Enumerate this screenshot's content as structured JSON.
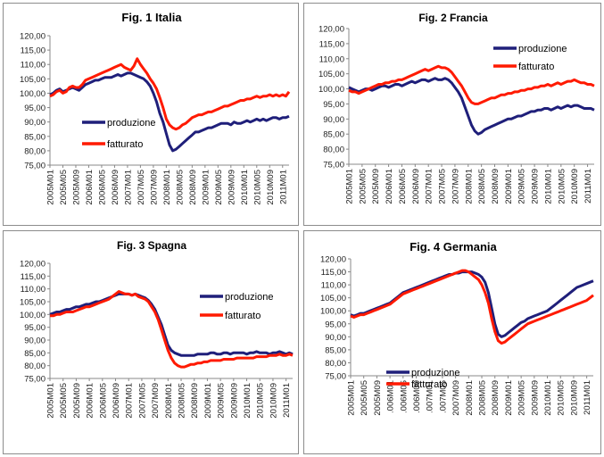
{
  "colors": {
    "produzione": "#1f1f7a",
    "fatturato": "#ff1a00"
  },
  "chart_data": [
    {
      "type": "line",
      "title": "Fig. 1 Italia",
      "ylim": [
        75,
        120
      ],
      "yticks": [
        "75,00",
        "80,00",
        "85,00",
        "90,00",
        "95,00",
        "100,00",
        "105,00",
        "110,00",
        "115,00",
        "120,00"
      ],
      "xticks": [
        "2005M01",
        "2005M05",
        "2005M09",
        "2006M01",
        "2006M05",
        "2006M09",
        "2007M01",
        "2007M05",
        "2007M09",
        "2008M01",
        "2008M05",
        "2008M09",
        "2009M01",
        "2009M05",
        "2009M09",
        "2010M01",
        "2010M05",
        "2010M09",
        "2011M01"
      ],
      "legend_position": "lower-left",
      "series": [
        {
          "name": "produzione",
          "values": [
            99.5,
            100,
            101,
            101.5,
            100.5,
            101,
            101.5,
            102,
            101.5,
            101,
            102,
            103,
            103.5,
            104,
            104.5,
            104.5,
            105,
            105.5,
            105.5,
            105.5,
            106,
            106.5,
            106,
            106.5,
            107,
            107,
            106.5,
            106,
            105.5,
            105,
            104,
            102.5,
            100,
            97,
            93,
            90,
            86,
            82,
            80,
            80.5,
            81.5,
            82.5,
            83.5,
            84.5,
            85.5,
            86.5,
            86.5,
            87,
            87.5,
            88,
            88,
            88.5,
            89,
            89.5,
            89.5,
            89.5,
            89,
            90,
            89.5,
            89.5,
            90,
            90.5,
            90,
            90.5,
            91,
            90.5,
            91,
            90.5,
            91,
            91.5,
            91.5,
            91,
            91.5,
            91.5,
            92
          ]
        },
        {
          "name": "fatturato",
          "values": [
            99,
            99.5,
            100.5,
            101,
            100,
            100.5,
            102,
            102.5,
            102,
            102,
            103,
            104.5,
            105,
            105.5,
            106,
            106.5,
            107,
            107.5,
            108,
            108.5,
            109,
            109.5,
            110,
            109,
            108.5,
            108,
            109.5,
            112,
            110,
            108.5,
            107,
            105,
            103.5,
            101.5,
            98.5,
            95,
            91,
            89,
            88,
            87.5,
            88,
            89,
            89.5,
            90.5,
            91.5,
            92,
            92.5,
            92.5,
            93,
            93.5,
            93.5,
            94,
            94.5,
            95,
            95.5,
            95.5,
            96,
            96.5,
            97,
            97.5,
            97.5,
            98,
            98,
            98.5,
            99,
            98.5,
            99,
            99,
            99.5,
            99,
            99.5,
            99,
            99.5,
            99,
            100.5
          ]
        }
      ]
    },
    {
      "type": "line",
      "title": "Fig. 2 Francia",
      "ylim": [
        75,
        120
      ],
      "yticks": [
        "75,00",
        "80,00",
        "85,00",
        "90,00",
        "95,00",
        "100,00",
        "105,00",
        "110,00",
        "115,00",
        "120,00"
      ],
      "xticks": [
        "2005M01",
        "2005M05",
        "2005M09",
        "2006M01",
        "2006M05",
        "2006M09",
        "2007M01",
        "2007M05",
        "2007M09",
        "2008M01",
        "2008M05",
        "2008M09",
        "2009M01",
        "2009M05",
        "2009M09",
        "2010M01",
        "2010M05",
        "2010M09",
        "2011M01"
      ],
      "legend_position": "top-right",
      "series": [
        {
          "name": "produzione",
          "values": [
            100.5,
            100,
            99.5,
            99,
            99.5,
            100,
            100,
            99.5,
            100,
            100.5,
            101,
            101,
            100.5,
            101,
            101.5,
            101.5,
            101,
            101.5,
            102,
            102.5,
            102,
            102.5,
            103,
            103,
            102.5,
            103,
            103.5,
            103,
            103,
            103.5,
            103,
            102,
            100.5,
            99,
            97,
            94,
            91,
            88,
            86,
            85,
            85.5,
            86.5,
            87,
            87.5,
            88,
            88.5,
            89,
            89.5,
            90,
            90,
            90.5,
            91,
            91,
            91.5,
            92,
            92.5,
            92.5,
            93,
            93,
            93.5,
            93.5,
            93,
            93.5,
            94,
            93.5,
            94,
            94.5,
            94,
            94.5,
            94.5,
            94,
            93.5,
            93.5,
            93.5,
            93
          ]
        },
        {
          "name": "fatturato",
          "values": [
            99.5,
            99,
            99,
            98.5,
            99,
            99.5,
            100,
            100.5,
            101,
            101.5,
            101.5,
            102,
            102,
            102.5,
            102.5,
            103,
            103,
            103.5,
            104,
            104.5,
            105,
            105.5,
            106,
            106.5,
            106,
            106.5,
            107,
            107.5,
            107,
            107,
            106.5,
            105.5,
            104,
            102.5,
            101,
            99,
            97,
            95.5,
            95,
            95,
            95.5,
            96,
            96.5,
            97,
            97,
            97.5,
            98,
            98,
            98.5,
            98.5,
            99,
            99,
            99.5,
            99.5,
            100,
            100,
            100.5,
            100.5,
            101,
            101,
            101.5,
            101,
            101.5,
            102,
            101.5,
            102,
            102.5,
            102.5,
            103,
            102.5,
            102,
            102,
            101.5,
            101.5,
            101
          ]
        }
      ]
    },
    {
      "type": "line",
      "title": "Fig. 3 Spagna",
      "ylim": [
        75,
        120
      ],
      "yticks": [
        "75,00",
        "80,00",
        "85,00",
        "90,00",
        "95,00",
        "100,00",
        "105,00",
        "110,00",
        "115,00",
        "120,00"
      ],
      "xticks": [
        "2005M01",
        "2005M05",
        "2005M09",
        "2006M01",
        "2006M05",
        "2006M09",
        "2007M01",
        "2007M05",
        "2007M09",
        "2008M01",
        "2008M05",
        "2008M09",
        "2009M01",
        "2009M05",
        "2009M09",
        "2010M01",
        "2010M05",
        "2010M09",
        "2011M01"
      ],
      "legend_position": "top-right",
      "series": [
        {
          "name": "produzione",
          "values": [
            100,
            100.5,
            101,
            101,
            101.5,
            102,
            102,
            102.5,
            103,
            103,
            103.5,
            104,
            104,
            104.5,
            105,
            105,
            105.5,
            106,
            106.5,
            107,
            107.5,
            108,
            108,
            108,
            108,
            107.5,
            108,
            107.5,
            107,
            106.5,
            105.5,
            104,
            102,
            99,
            96,
            92,
            88,
            86,
            85,
            84.5,
            84,
            84,
            84,
            84,
            84,
            84.5,
            84.5,
            84.5,
            84.5,
            85,
            85,
            84.5,
            84.5,
            85,
            85,
            84.5,
            85,
            85,
            85,
            85,
            84.5,
            85,
            85,
            85.5,
            85,
            85,
            85,
            84.5,
            85,
            85,
            85.5,
            85,
            84.5,
            85,
            84.5
          ]
        },
        {
          "name": "fatturato",
          "values": [
            99.5,
            99.5,
            100,
            100,
            100.5,
            101,
            101,
            101,
            101.5,
            102,
            102.5,
            103,
            103,
            103.5,
            104,
            104.5,
            105,
            105.5,
            106,
            107,
            108,
            109,
            108.5,
            108,
            108,
            107.5,
            108,
            107,
            106.5,
            106,
            105,
            103,
            101,
            98,
            94,
            90,
            86,
            83,
            81,
            80,
            79.5,
            79.5,
            80,
            80.5,
            80.5,
            81,
            81,
            81.5,
            81.5,
            82,
            82,
            82,
            82,
            82.5,
            82.5,
            82.5,
            82.5,
            83,
            83,
            83,
            83,
            83,
            83,
            83.5,
            83.5,
            83.5,
            83.5,
            84,
            84,
            84,
            84.5,
            84,
            84,
            84.5,
            84
          ]
        }
      ]
    },
    {
      "type": "line",
      "title": "Fig. 4 Germania",
      "ylim": [
        75,
        120
      ],
      "yticks": [
        "75,00",
        "80,00",
        "85,00",
        "90,00",
        "95,00",
        "100,00",
        "105,00",
        "110,00",
        "115,00",
        "120,00"
      ],
      "xticks": [
        "2005M01",
        "2005M05",
        "2005M09",
        ".006M01",
        ".006M05",
        ".006M09",
        ".007M01",
        ".007M05",
        "2007M09",
        "2008M01",
        "2008M05",
        "2008M09",
        "2009M01",
        "2009M05",
        "2009M09",
        "2010M01",
        "2010M05",
        "2010M09",
        "2011M01"
      ],
      "legend_position": "bottom-left",
      "series": [
        {
          "name": "produzione",
          "values": [
            98.5,
            98,
            98.5,
            99,
            99,
            99.5,
            100,
            100.5,
            101,
            101.5,
            102,
            102.5,
            103,
            104,
            105,
            106,
            107,
            107.5,
            108,
            108.5,
            109,
            109.5,
            110,
            110.5,
            111,
            111.5,
            112,
            112.5,
            113,
            113.5,
            114,
            114,
            114.5,
            114.5,
            115,
            115,
            115,
            115,
            114.5,
            114,
            113,
            111,
            107,
            101,
            95,
            91,
            90,
            90.5,
            91.5,
            92.5,
            93.5,
            94.5,
            95.5,
            96,
            97,
            97.5,
            98,
            98.5,
            99,
            99.5,
            100,
            101,
            102,
            103,
            104,
            105,
            106,
            107,
            108,
            109,
            109.5,
            110,
            110.5,
            111,
            111.5
          ]
        },
        {
          "name": "fatturato",
          "values": [
            98,
            97.5,
            98,
            98.5,
            98.5,
            99,
            99.5,
            100,
            100.5,
            101,
            101.5,
            102,
            102.5,
            103.5,
            104.5,
            105.5,
            106.5,
            107,
            107.5,
            108,
            108.5,
            109,
            109.5,
            110,
            110.5,
            111,
            111.5,
            112,
            112.5,
            113,
            113.5,
            114,
            114.5,
            115,
            115.5,
            115.5,
            115,
            114,
            113,
            112,
            110,
            107,
            103,
            97,
            92,
            88.5,
            87.5,
            88,
            89,
            90,
            91,
            92,
            93,
            94,
            95,
            95.5,
            96,
            96.5,
            97,
            97.5,
            98,
            98.5,
            99,
            99.5,
            100,
            100.5,
            101,
            101.5,
            102,
            102.5,
            103,
            103.5,
            104,
            105,
            106
          ]
        }
      ]
    }
  ]
}
